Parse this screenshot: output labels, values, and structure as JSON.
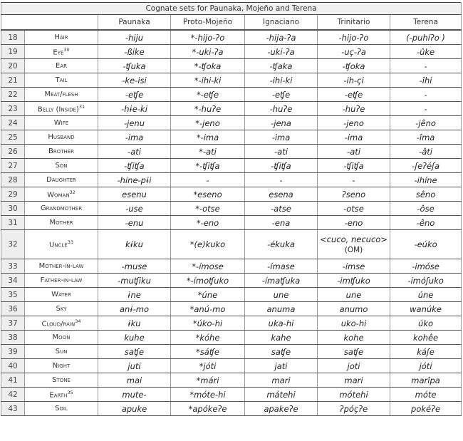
{
  "title": "Cognate sets for Paunaka, Mojeño and Terena",
  "columns": [
    "",
    "Paunaka",
    "Proto-Mojeño",
    "Ignaciano",
    "Trinitario",
    "Terena"
  ],
  "rows": [
    {
      "n": "18",
      "gloss": "Hair",
      "note": "",
      "v": [
        "-hiju",
        "*-hijo-ʔo",
        "-hija-ʔa",
        "-hijo-ʔo",
        "(-puhíʔo )"
      ]
    },
    {
      "n": "19",
      "gloss": "Eye",
      "note": "30",
      "v": [
        "-ßike",
        "*-uki-ʔa",
        "-uki-ʔa",
        "-uç-ʔa",
        "-ûke"
      ]
    },
    {
      "n": "20",
      "gloss": "Ear",
      "note": "",
      "v": [
        "-ʧuka",
        "*-ʧoka",
        "-ʧaka",
        "-ʧoka",
        "-"
      ]
    },
    {
      "n": "21",
      "gloss": "Tail",
      "note": "",
      "v": [
        "-ke-isi",
        "*-ihi-ki",
        "-ihi-ki",
        "-ih-çi",
        "-îhi"
      ]
    },
    {
      "n": "22",
      "gloss": "Meat/flesh",
      "note": "",
      "v": [
        "-eʧe",
        "*-eʧe",
        "-eʧe",
        "-eʧe",
        "-"
      ]
    },
    {
      "n": "23",
      "gloss": "Belly (Inside)",
      "note": "31",
      "v": [
        "-hɨe-ki",
        "*-huʔe",
        "-huʔe",
        "-huʔe",
        "-"
      ]
    },
    {
      "n": "24",
      "gloss": "Wife",
      "note": "",
      "v": [
        "-jenu",
        "*-jeno",
        "-jena",
        "-jeno",
        "-jêno"
      ]
    },
    {
      "n": "25",
      "gloss": "Husband",
      "note": "",
      "v": [
        "-ima",
        "*-ima",
        "-ima",
        "-ima",
        "-îma"
      ]
    },
    {
      "n": "26",
      "gloss": "Brother",
      "note": "",
      "v": [
        "-ati",
        "*-ati",
        "-ati",
        "-ati",
        "-âti"
      ]
    },
    {
      "n": "27",
      "gloss": "Son",
      "note": "",
      "v": [
        "-ʧiʧa",
        "*-ʧiʧa",
        "-ʧiʧa",
        "-ʧiʧa",
        "-ʃeʔéʃa"
      ]
    },
    {
      "n": "28",
      "gloss": "Daughter",
      "note": "",
      "v": [
        "-hine-pɨi",
        "-",
        "-",
        "-",
        "-ihíne"
      ]
    },
    {
      "n": "29",
      "gloss": "Woman",
      "note": "32",
      "v": [
        "esenu",
        "*eseno",
        "esena",
        "ʔseno",
        "sêno"
      ]
    },
    {
      "n": "30",
      "gloss": "Grandmother",
      "note": "",
      "v": [
        "-use",
        "*-otse",
        "-atse",
        "-otse",
        "-ôse"
      ]
    },
    {
      "n": "31",
      "gloss": "Mother",
      "note": "",
      "v": [
        "-enu",
        "*-eno",
        "-ena",
        "-eno",
        "-êno"
      ]
    },
    {
      "n": "32",
      "gloss": "Uncle",
      "note": "33",
      "v": [
        "kɨku",
        "*(e)kuko",
        "-ékuka",
        "<cuco, necuco>",
        "-eúko"
      ],
      "extra": "(OM)"
    },
    {
      "n": "33",
      "gloss": "Mother-in-law",
      "note": "",
      "v": [
        "-muse",
        "*-ímose",
        "-ímase",
        "-imse",
        "-imóse"
      ]
    },
    {
      "n": "34",
      "gloss": "Father-in-law",
      "note": "",
      "v": [
        "-muʧiku",
        "*-ímoʧuko",
        "-ímaʧuka",
        "-imʧuko",
        "-imóʃuko"
      ]
    },
    {
      "n": "35",
      "gloss": "Water",
      "note": "",
      "v": [
        "ɨne",
        "*úne",
        "une",
        "une",
        "úne"
      ]
    },
    {
      "n": "36",
      "gloss": "Sky",
      "note": "",
      "v": [
        "anɨ-mo",
        "*anú-mo",
        "anuma",
        "anumo",
        "wanúke"
      ]
    },
    {
      "n": "37",
      "gloss": "Cloud/rain",
      "note": "34",
      "v": [
        "ɨku",
        "*úko-hi",
        "uka-hi",
        "uko-hi",
        "úko"
      ]
    },
    {
      "n": "38",
      "gloss": "Moon",
      "note": "",
      "v": [
        "kuhe",
        "*kóhe",
        "kahe",
        "kohe",
        "kohêe"
      ]
    },
    {
      "n": "39",
      "gloss": "Sun",
      "note": "",
      "v": [
        "saʧe",
        "*sáʧe",
        "saʧe",
        "saʧe",
        "káʃe"
      ]
    },
    {
      "n": "40",
      "gloss": "Night",
      "note": "",
      "v": [
        "juti",
        "*jóti",
        "jati",
        "joti",
        "jóti"
      ]
    },
    {
      "n": "41",
      "gloss": "Stone",
      "note": "",
      "v": [
        "mai",
        "*mári",
        "mari",
        "mari",
        "marîpa"
      ]
    },
    {
      "n": "42",
      "gloss": "Earth",
      "note": "35",
      "v": [
        "mute-",
        "*móte-hi",
        "mátehi",
        "mótehi",
        "móte"
      ]
    },
    {
      "n": "43",
      "gloss": "Soil",
      "note": "",
      "v": [
        "apuke",
        "*apókeʔe",
        "apakeʔe",
        "ʔpóçʔe",
        "pokéʔe"
      ]
    }
  ]
}
